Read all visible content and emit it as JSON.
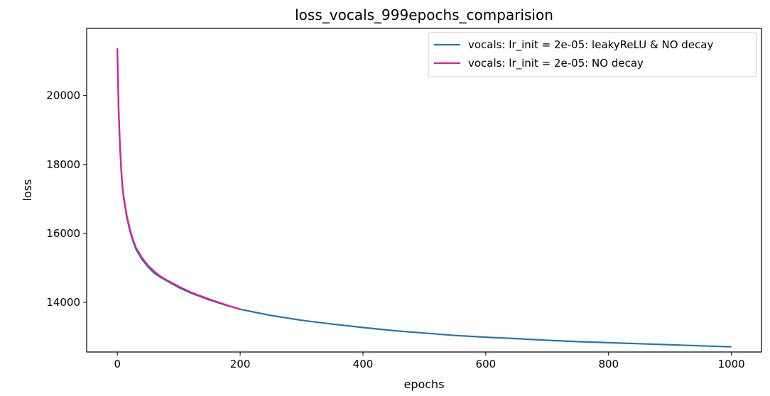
{
  "chart_data": {
    "type": "line",
    "title": "loss_vocals_999epochs_comparision",
    "xlabel": "epochs",
    "ylabel": "loss",
    "xlim": [
      -50,
      1049
    ],
    "ylim": [
      12560,
      21950
    ],
    "xticks": [
      0,
      200,
      400,
      600,
      800,
      1000
    ],
    "yticks": [
      14000,
      16000,
      18000,
      20000
    ],
    "grid": false,
    "legend_position": "top-right",
    "series": [
      {
        "name": "vocals: lr_init = 2e-05: leakyReLU & NO decay",
        "color": "#1f77b4",
        "x": [
          0,
          2,
          4,
          6,
          8,
          10,
          15,
          20,
          25,
          30,
          40,
          50,
          60,
          70,
          80,
          100,
          120,
          150,
          180,
          200,
          250,
          300,
          350,
          400,
          450,
          470,
          500,
          550,
          600,
          610,
          650,
          700,
          750,
          800,
          850,
          900,
          950,
          999
        ],
        "y": [
          21350,
          19600,
          18600,
          17900,
          17400,
          17050,
          16500,
          16100,
          15800,
          15550,
          15250,
          15030,
          14850,
          14730,
          14630,
          14430,
          14270,
          14070,
          13900,
          13800,
          13620,
          13480,
          13370,
          13270,
          13180,
          13150,
          13110,
          13040,
          12990,
          12980,
          12950,
          12900,
          12860,
          12830,
          12800,
          12770,
          12740,
          12710
        ]
      },
      {
        "name": "vocals: lr_init = 2e-05: NO decay",
        "color": "#e31a9b",
        "x": [
          0,
          2,
          4,
          6,
          8,
          10,
          15,
          20,
          25,
          30,
          40,
          50,
          60,
          70,
          80,
          100,
          120,
          150,
          180,
          200
        ],
        "y": [
          21350,
          19700,
          18700,
          17950,
          17450,
          17100,
          16550,
          16150,
          15850,
          15600,
          15300,
          15070,
          14900,
          14760,
          14650,
          14460,
          14290,
          14090,
          13910,
          13800
        ]
      }
    ]
  }
}
